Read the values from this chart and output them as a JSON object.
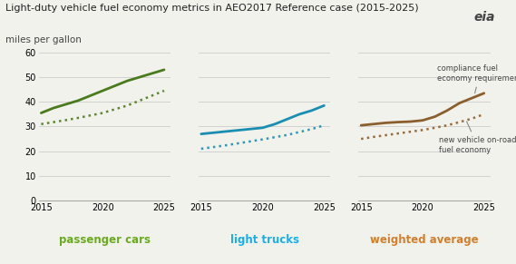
{
  "title": "Light-duty vehicle fuel economy metrics in AEO2017 Reference case (2015-2025)",
  "subtitle": "miles per gallon",
  "years": [
    2015,
    2016,
    2017,
    2018,
    2019,
    2020,
    2021,
    2022,
    2023,
    2024,
    2025
  ],
  "passenger_cars_solid": [
    35.5,
    37.5,
    39.0,
    40.5,
    42.5,
    44.5,
    46.5,
    48.5,
    50.0,
    51.5,
    53.0
  ],
  "passenger_cars_dotted": [
    31.0,
    31.8,
    32.6,
    33.5,
    34.5,
    35.5,
    37.0,
    38.5,
    40.5,
    42.5,
    44.5
  ],
  "light_trucks_solid": [
    27.0,
    27.5,
    28.0,
    28.5,
    29.0,
    29.5,
    31.0,
    33.0,
    35.0,
    36.5,
    38.5
  ],
  "light_trucks_dotted": [
    21.0,
    21.7,
    22.4,
    23.2,
    24.0,
    24.8,
    25.7,
    26.6,
    27.8,
    29.0,
    30.5
  ],
  "weighted_solid": [
    30.5,
    31.0,
    31.5,
    31.8,
    32.0,
    32.5,
    34.0,
    36.5,
    39.5,
    41.5,
    43.5
  ],
  "weighted_dotted": [
    25.0,
    25.8,
    26.5,
    27.2,
    27.9,
    28.6,
    29.5,
    30.5,
    31.8,
    33.2,
    35.0
  ],
  "color_green": "#4a7a1e",
  "color_blue": "#1a8eb0",
  "color_brown": "#8b5e2e",
  "color_label_green": "#6aaa20",
  "color_label_blue": "#1aafe8",
  "color_label_brown": "#d08030",
  "bg_color": "#f2f2ec",
  "grid_color": "#cccccc",
  "ylim": [
    0,
    62
  ],
  "yticks": [
    0,
    10,
    20,
    30,
    40,
    50,
    60
  ],
  "label_passenger": "passenger cars",
  "label_trucks": "light trucks",
  "label_weighted": "weighted average",
  "label_compliance": "compliance fuel\neconomy requirement",
  "label_onroad": "new vehicle on-road\nfuel economy",
  "xticks": [
    2015,
    2020,
    2025
  ]
}
